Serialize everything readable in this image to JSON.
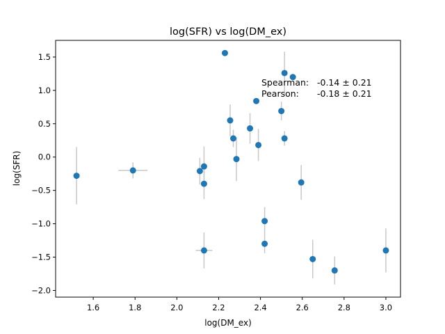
{
  "chart_data": {
    "type": "scatter",
    "title": "log(SFR) vs log(DM_ex)",
    "xlabel": "log(DM_ex)",
    "ylabel": "log(SFR)",
    "xlim": [
      1.42,
      3.07
    ],
    "ylim": [
      -2.1,
      1.75
    ],
    "xticks": [
      1.6,
      1.8,
      2.0,
      2.2,
      2.4,
      2.6,
      2.8,
      3.0
    ],
    "yticks": [
      -2.0,
      -1.5,
      -1.0,
      -0.5,
      0.0,
      0.5,
      1.0,
      1.5
    ],
    "grid": false,
    "marker_color": "#1f77b4",
    "errorbar_color": "#c8c8c8",
    "annotation": {
      "line1_label": "Spearman:",
      "line1_value": "-0.14 ± 0.21",
      "line2_label": "Pearson:",
      "line2_value": "-0.18 ± 0.21"
    },
    "points": [
      {
        "x": 1.52,
        "y": -0.28,
        "xerr": 0.0,
        "yerr": 0.43
      },
      {
        "x": 1.79,
        "y": -0.2,
        "xerr": 0.07,
        "yerr": 0.12
      },
      {
        "x": 2.11,
        "y": -0.21,
        "xerr": 0.0,
        "yerr": 0.2
      },
      {
        "x": 2.13,
        "y": -0.14,
        "xerr": 0.0,
        "yerr": 0.3
      },
      {
        "x": 2.13,
        "y": -0.4,
        "xerr": 0.0,
        "yerr": 0.23
      },
      {
        "x": 2.13,
        "y": -1.4,
        "xerr": 0.04,
        "yerr": 0.27
      },
      {
        "x": 2.23,
        "y": 1.56,
        "xerr": 0.0,
        "yerr": 0.0
      },
      {
        "x": 2.255,
        "y": 0.55,
        "xerr": 0.0,
        "yerr": 0.24
      },
      {
        "x": 2.27,
        "y": 0.28,
        "xerr": 0.0,
        "yerr": 0.13
      },
      {
        "x": 2.285,
        "y": -0.03,
        "xerr": 0.0,
        "yerr": 0.33
      },
      {
        "x": 2.35,
        "y": 0.43,
        "xerr": 0.0,
        "yerr": 0.23
      },
      {
        "x": 2.38,
        "y": 0.84,
        "xerr": 0.0,
        "yerr": 0.0
      },
      {
        "x": 2.39,
        "y": 0.18,
        "xerr": 0.0,
        "yerr": 0.24
      },
      {
        "x": 2.42,
        "y": -0.96,
        "xerr": 0.0,
        "yerr": 0.21
      },
      {
        "x": 2.42,
        "y": -1.3,
        "xerr": 0.0,
        "yerr": 0.14
      },
      {
        "x": 2.5,
        "y": 0.69,
        "xerr": 0.0,
        "yerr": 0.14
      },
      {
        "x": 2.515,
        "y": 1.26,
        "xerr": 0.0,
        "yerr": 0.32
      },
      {
        "x": 2.515,
        "y": 0.28,
        "xerr": 0.0,
        "yerr": 0.11
      },
      {
        "x": 2.555,
        "y": 1.2,
        "xerr": 0.0,
        "yerr": 0.0
      },
      {
        "x": 2.595,
        "y": -0.38,
        "xerr": 0.0,
        "yerr": 0.26
      },
      {
        "x": 2.65,
        "y": -1.53,
        "xerr": 0.0,
        "yerr": 0.29
      },
      {
        "x": 2.755,
        "y": -1.7,
        "xerr": 0.0,
        "yerr": 0.21
      },
      {
        "x": 3.0,
        "y": -1.4,
        "xerr": 0.0,
        "yerr": 0.33
      }
    ]
  }
}
